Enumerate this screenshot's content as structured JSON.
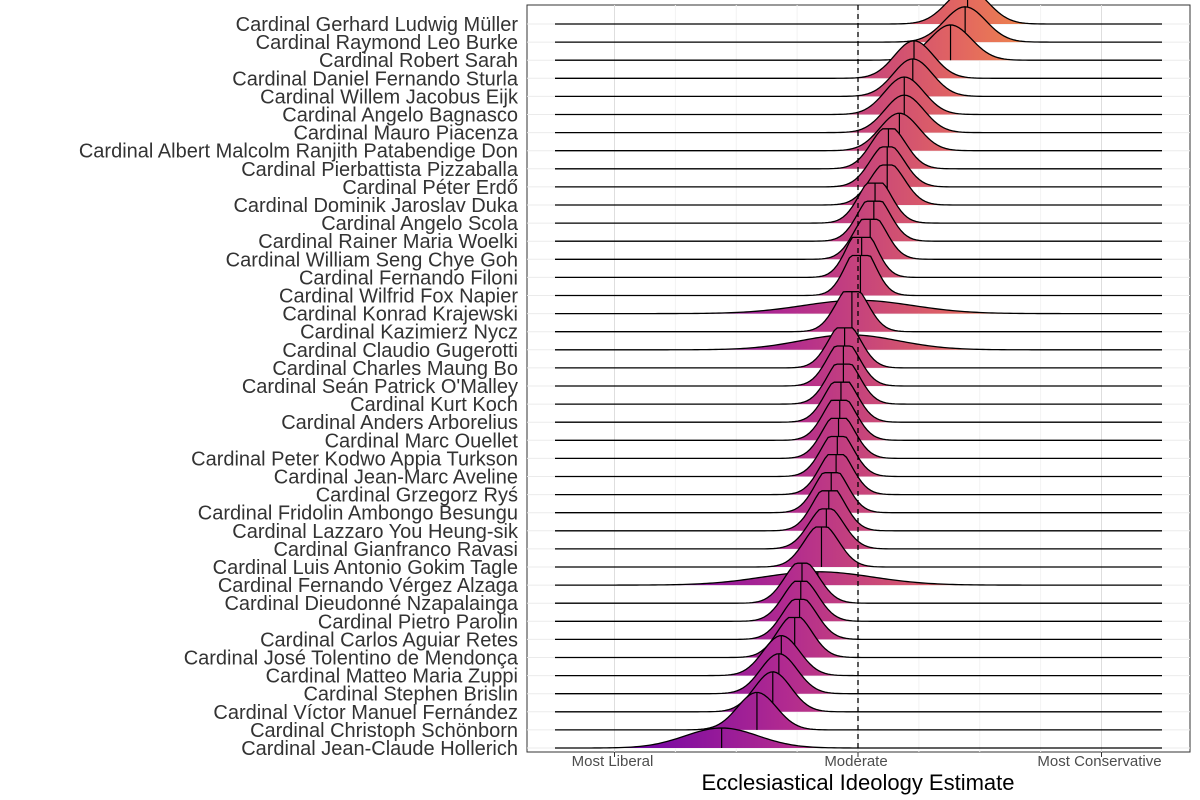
{
  "chart_data": {
    "type": "ridgeline",
    "xlabel": "Ecclesiastical Ideology Estimate",
    "x_ticks": [
      {
        "label": "Most Liberal",
        "value": -2
      },
      {
        "label": "Moderate",
        "value": 0
      },
      {
        "label": "Most Conservative",
        "value": 2
      }
    ],
    "xlim": [
      -2.5,
      2.5
    ],
    "reference_line": {
      "value": 0,
      "style": "dashed"
    },
    "gradient_colors": [
      "#6a00a8",
      "#b12a90",
      "#e16462",
      "#fca636"
    ],
    "grid": true,
    "series": [
      {
        "name": "Cardinal Gerhard Ludwig Müller",
        "mean": 0.9,
        "sd": 0.17
      },
      {
        "name": "Cardinal Raymond Leo Burke",
        "mean": 0.88,
        "sd": 0.17
      },
      {
        "name": "Cardinal Robert Sarah",
        "mean": 0.76,
        "sd": 0.17
      },
      {
        "name": "Cardinal Daniel Fernando Sturla",
        "mean": 0.46,
        "sd": 0.16
      },
      {
        "name": "Cardinal Willem Jacobus Eijk",
        "mean": 0.45,
        "sd": 0.16
      },
      {
        "name": "Cardinal Angelo Bagnasco",
        "mean": 0.38,
        "sd": 0.16
      },
      {
        "name": "Cardinal Mauro Piacenza",
        "mean": 0.38,
        "sd": 0.16
      },
      {
        "name": "Cardinal Albert Malcolm Ranjith Patabendige Don",
        "mean": 0.34,
        "sd": 0.16
      },
      {
        "name": "Cardinal Pierbattista Pizzaballa",
        "mean": 0.25,
        "sd": 0.14
      },
      {
        "name": "Cardinal Péter Erdő",
        "mean": 0.24,
        "sd": 0.14
      },
      {
        "name": "Cardinal Dominik Jaroslav Duka",
        "mean": 0.24,
        "sd": 0.14
      },
      {
        "name": "Cardinal Angelo Scola",
        "mean": 0.14,
        "sd": 0.13
      },
      {
        "name": "Cardinal Rainer Maria Woelki",
        "mean": 0.13,
        "sd": 0.13
      },
      {
        "name": "Cardinal William Seng Chye Goh",
        "mean": 0.1,
        "sd": 0.13
      },
      {
        "name": "Cardinal Fernando Filoni",
        "mean": 0.03,
        "sd": 0.12
      },
      {
        "name": "Cardinal Wilfrid Fox Napier",
        "mean": 0.02,
        "sd": 0.12
      },
      {
        "name": "Cardinal Konrad Krajewski",
        "mean": 0.0,
        "sd": 0.45
      },
      {
        "name": "Cardinal Kazimierz Nycz",
        "mean": -0.05,
        "sd": 0.13
      },
      {
        "name": "Cardinal Claudio Gugerotti",
        "mean": -0.07,
        "sd": 0.4
      },
      {
        "name": "Cardinal Charles Maung Bo",
        "mean": -0.11,
        "sd": 0.13
      },
      {
        "name": "Cardinal Seán Patrick O'Malley",
        "mean": -0.12,
        "sd": 0.13
      },
      {
        "name": "Cardinal Kurt Koch",
        "mean": -0.12,
        "sd": 0.13
      },
      {
        "name": "Cardinal Anders Arborelius",
        "mean": -0.14,
        "sd": 0.13
      },
      {
        "name": "Cardinal Marc Ouellet",
        "mean": -0.15,
        "sd": 0.13
      },
      {
        "name": "Cardinal Peter Kodwo Appia Turkson",
        "mean": -0.16,
        "sd": 0.13
      },
      {
        "name": "Cardinal Jean-Marc Aveline",
        "mean": -0.17,
        "sd": 0.13
      },
      {
        "name": "Cardinal Grzegorz Ryś",
        "mean": -0.18,
        "sd": 0.13
      },
      {
        "name": "Cardinal Fridolin Ambongo Besungu",
        "mean": -0.22,
        "sd": 0.13
      },
      {
        "name": "Cardinal Lazzaro You Heung-sik",
        "mean": -0.24,
        "sd": 0.13
      },
      {
        "name": "Cardinal Gianfranco Ravasi",
        "mean": -0.26,
        "sd": 0.14
      },
      {
        "name": "Cardinal Luis Antonio Gokim Tagle",
        "mean": -0.3,
        "sd": 0.14
      },
      {
        "name": "Cardinal Fernando Vérgez Alzaga",
        "mean": -0.33,
        "sd": 0.45
      },
      {
        "name": "Cardinal Dieudonné Nzapalainga",
        "mean": -0.46,
        "sd": 0.14
      },
      {
        "name": "Cardinal Pietro Parolin",
        "mean": -0.47,
        "sd": 0.14
      },
      {
        "name": "Cardinal Carlos Aguiar Retes",
        "mean": -0.48,
        "sd": 0.14
      },
      {
        "name": "Cardinal José Tolentino de Mendonça",
        "mean": -0.52,
        "sd": 0.14
      },
      {
        "name": "Cardinal Matteo Maria Zuppi",
        "mean": -0.63,
        "sd": 0.15
      },
      {
        "name": "Cardinal Stephen Brislin",
        "mean": -0.65,
        "sd": 0.15
      },
      {
        "name": "Cardinal Víctor Manuel Fernández",
        "mean": -0.7,
        "sd": 0.15
      },
      {
        "name": "Cardinal Christoph Schönborn",
        "mean": -0.83,
        "sd": 0.16
      },
      {
        "name": "Cardinal Jean-Claude Hollerich",
        "mean": -1.12,
        "sd": 0.3
      }
    ]
  }
}
